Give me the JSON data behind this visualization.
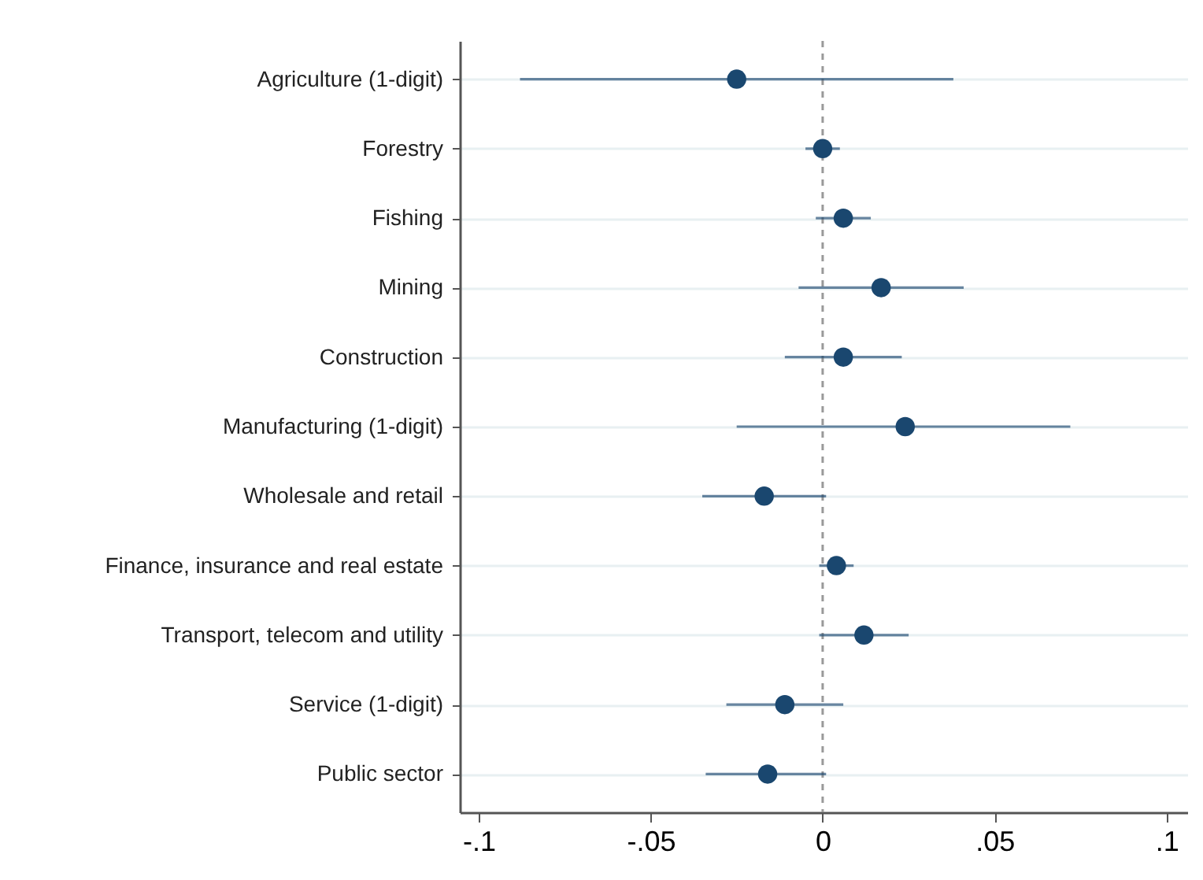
{
  "chart_data": {
    "type": "scatter",
    "orientation": "horizontal",
    "categories": [
      "Agriculture (1-digit)",
      "Forestry",
      "Fishing",
      "Mining",
      "Construction",
      "Manufacturing (1-digit)",
      "Wholesale and retail",
      "Finance, insurance and real estate",
      "Transport, telecom and utility",
      "Service (1-digit)",
      "Public sector"
    ],
    "series": [
      {
        "color": "#1a476f",
        "values": [
          -0.025,
          0.0,
          0.006,
          0.017,
          0.006,
          0.024,
          -0.017,
          0.004,
          0.012,
          -0.011,
          -0.016
        ],
        "errors": [
          [
            -0.088,
            0.038
          ],
          [
            -0.005,
            0.005
          ],
          [
            -0.002,
            0.014
          ],
          [
            -0.007,
            0.041
          ],
          [
            -0.011,
            0.023
          ],
          [
            -0.025,
            0.072
          ],
          [
            -0.035,
            0.001
          ],
          [
            -0.001,
            0.009
          ],
          [
            -0.001,
            0.025
          ],
          [
            -0.028,
            0.006
          ],
          [
            -0.034,
            0.001
          ]
        ]
      }
    ],
    "xlim": [
      -0.1055,
      0.106
    ],
    "xticks": [
      {
        "value": -0.1,
        "label": "-.1"
      },
      {
        "value": -0.05,
        "label": "-.05"
      },
      0,
      {
        "value": 0.05,
        "label": ".05"
      },
      {
        "value": 0.1,
        "label": ".1"
      }
    ],
    "ref_lines": [
      {
        "axis": "x",
        "value": 0,
        "color": "#999999",
        "line_style": "dashed"
      }
    ],
    "grid": "y",
    "marker": "circle"
  }
}
